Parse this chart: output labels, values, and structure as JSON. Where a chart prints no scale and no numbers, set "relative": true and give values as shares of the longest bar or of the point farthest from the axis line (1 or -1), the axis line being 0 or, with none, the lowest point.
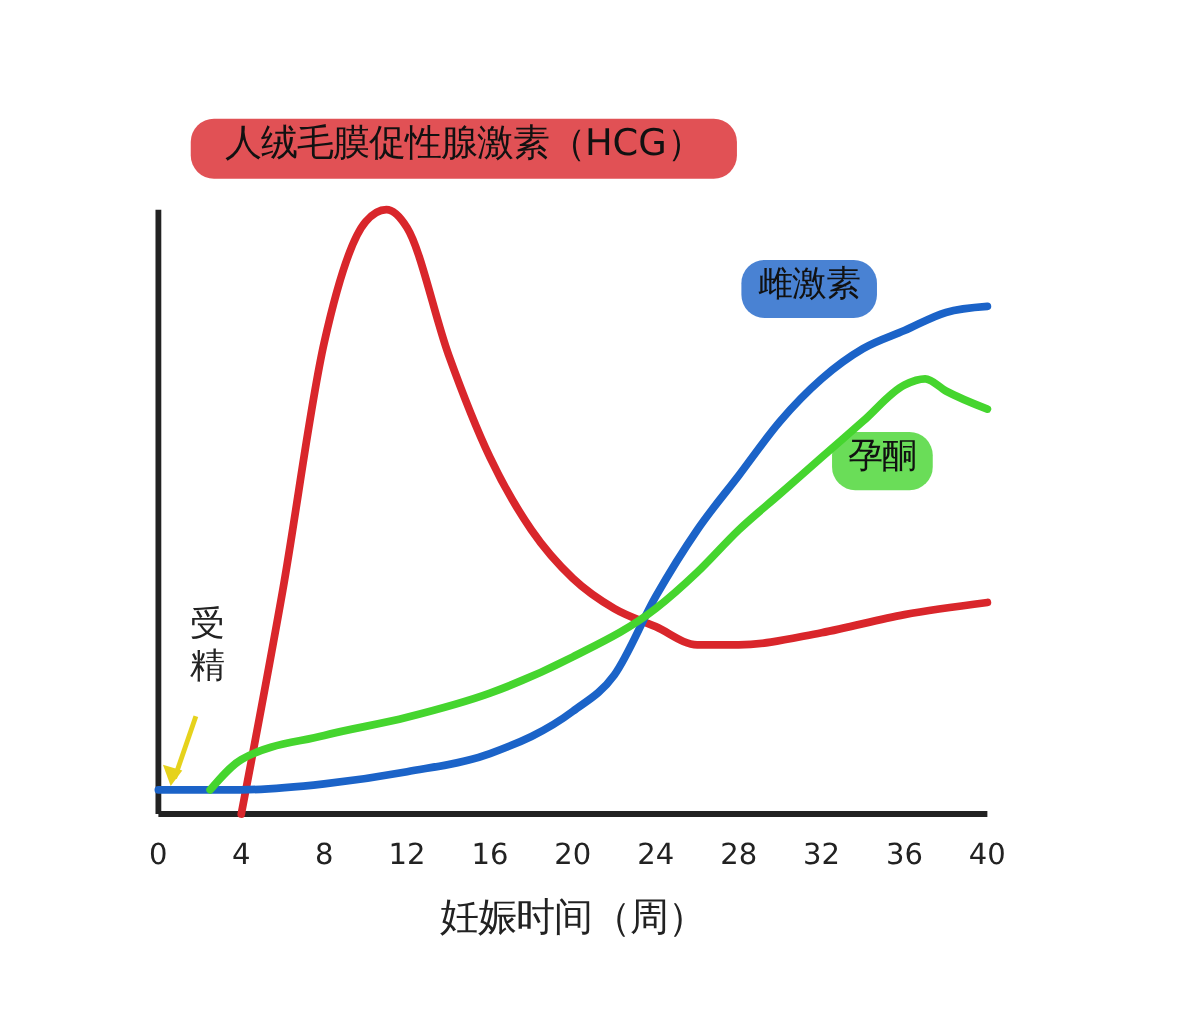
{
  "chart_data": {
    "type": "line",
    "relative": true,
    "xlabel": "妊娠时间（周）",
    "xlim": [
      0,
      40
    ],
    "xticks": [
      0,
      4,
      8,
      12,
      16,
      20,
      24,
      28,
      32,
      36,
      40
    ],
    "tick_labels": "x",
    "legend": false,
    "grid": false,
    "line_style": "solid",
    "marker": "none",
    "annotations": [
      {
        "text": "受精",
        "x": 0.5,
        "y": 0.04
      }
    ],
    "series": [
      {
        "name": "人绒毛膜促性腺激素（HCG）",
        "color": "#d9262b",
        "x": [
          4,
          6,
          8,
          10,
          11,
          12,
          14,
          16,
          18,
          20,
          22,
          24,
          26,
          28,
          32,
          36,
          40
        ],
        "values": [
          0,
          0.37,
          0.78,
          0.98,
          1,
          0.97,
          0.76,
          0.59,
          0.47,
          0.39,
          0.34,
          0.31,
          0.28,
          0.28,
          0.3,
          0.33,
          0.35
        ]
      },
      {
        "name": "雌激素",
        "color": "#1b63c8",
        "x": [
          0,
          4,
          8,
          12,
          16,
          20,
          22,
          24,
          26,
          28,
          30,
          32,
          34,
          36,
          38,
          40
        ],
        "values": [
          0.04,
          0.04,
          0.05,
          0.07,
          0.1,
          0.17,
          0.23,
          0.36,
          0.47,
          0.56,
          0.65,
          0.72,
          0.77,
          0.8,
          0.83,
          0.84
        ]
      },
      {
        "name": "孕酮",
        "color": "#45d52e",
        "x": [
          2.5,
          4,
          8,
          12,
          16,
          20,
          24,
          26,
          28,
          30,
          32,
          34,
          36,
          37,
          38,
          40
        ],
        "values": [
          0.04,
          0.09,
          0.13,
          0.16,
          0.2,
          0.26,
          0.34,
          0.4,
          0.47,
          0.53,
          0.59,
          0.65,
          0.71,
          0.72,
          0.7,
          0.67
        ]
      }
    ]
  }
}
